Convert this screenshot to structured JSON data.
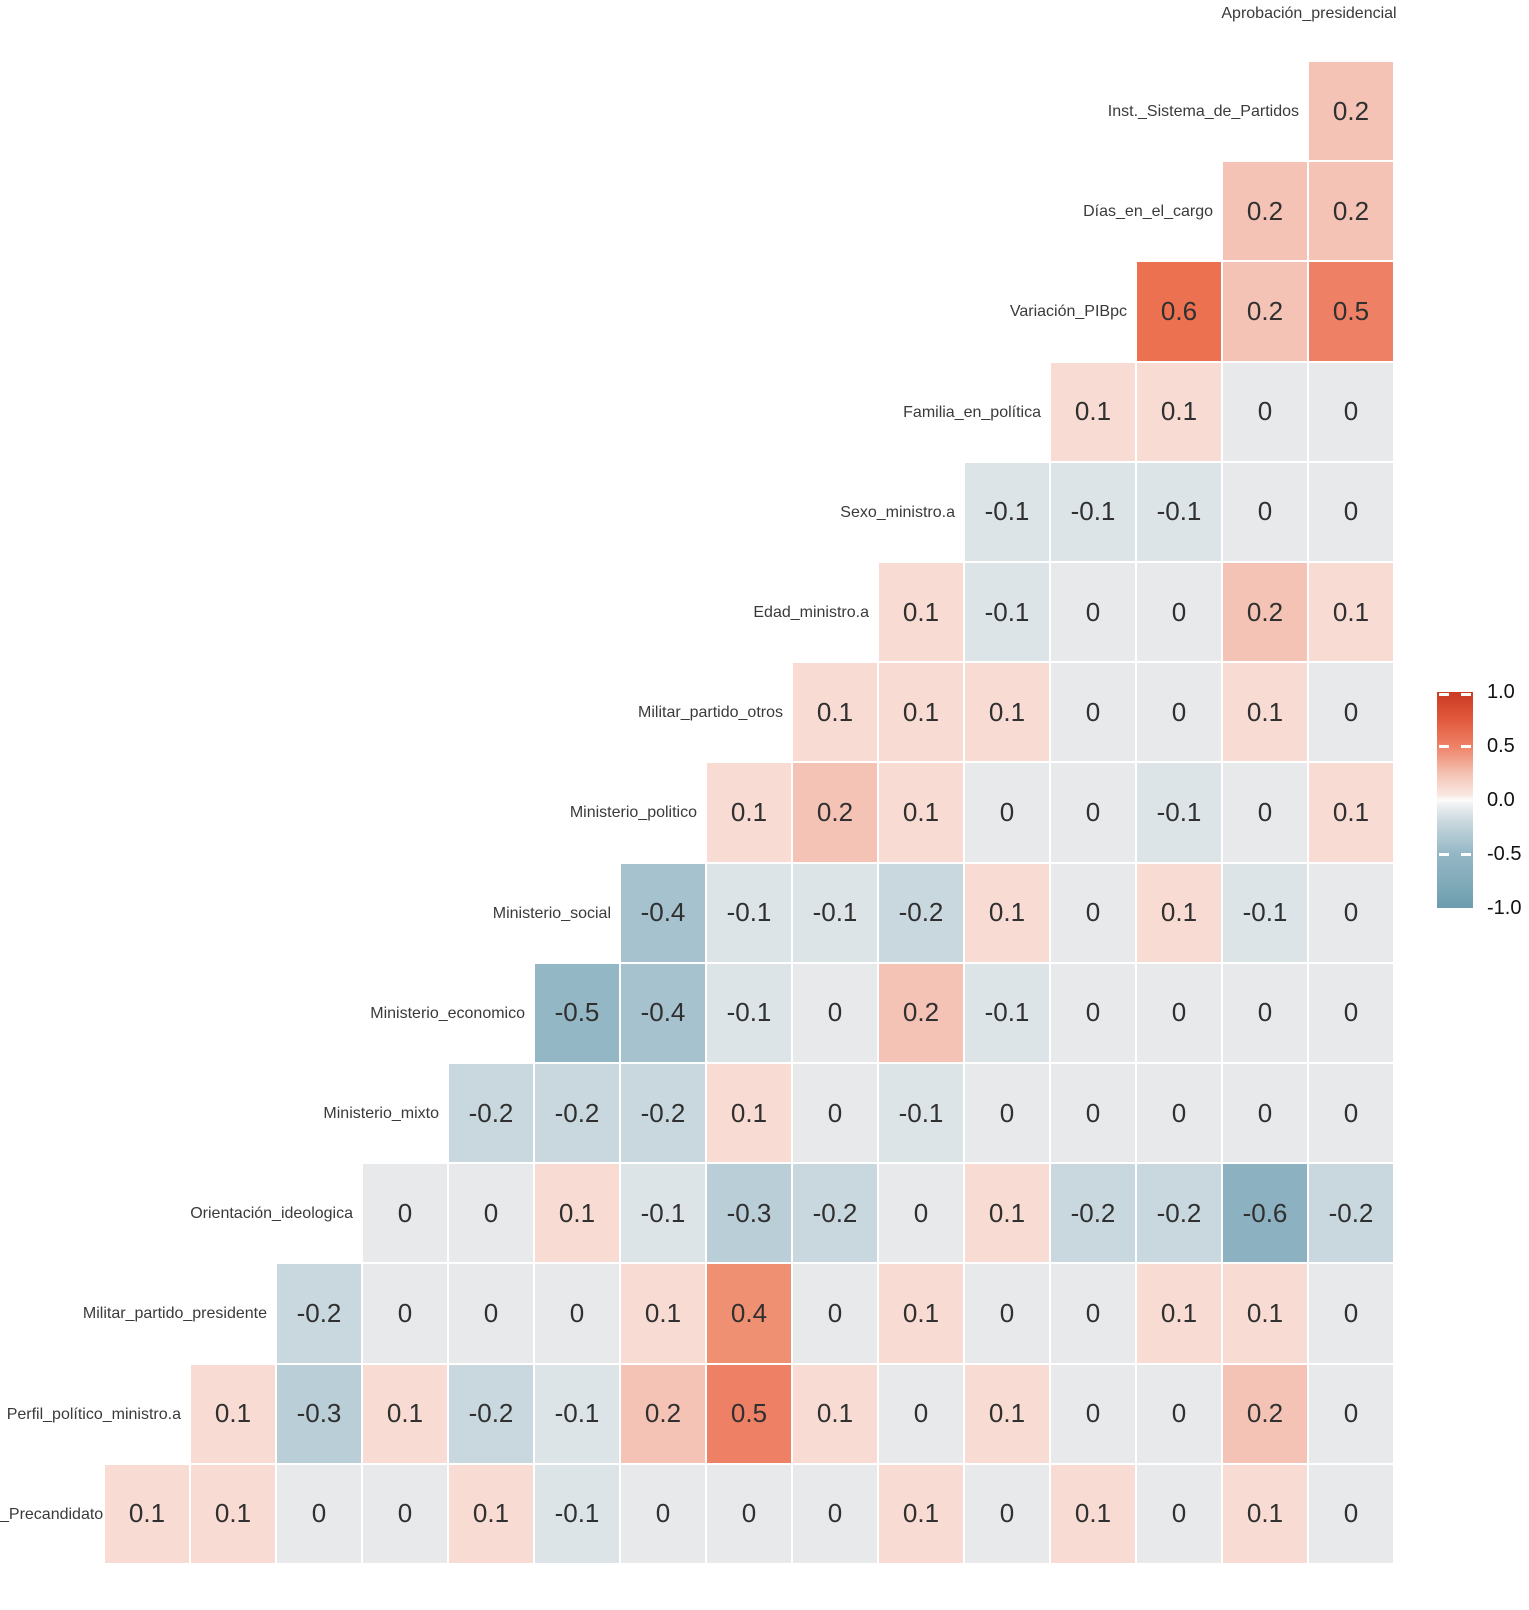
{
  "top_axis_label": "Aprobación_presidencial",
  "chart_data": {
    "type": "heatmap",
    "subtype": "correlation-matrix-lower-triangle",
    "value_range": [
      -1,
      1
    ],
    "grid": "off",
    "top_column_label": "Aprobación_presidencial",
    "columns_left_to_right": [
      "Perfil_político_ministro.a",
      "Militar_partido_presidente",
      "Orientación_ideologica",
      "Ministerio_mixto",
      "Ministerio_economico",
      "Ministerio_social",
      "Ministerio_politico",
      "Militar_partido_otros",
      "Edad_ministro.a",
      "Sexo_ministro.a",
      "Familia_en_política",
      "Variación_PIBpc",
      "Días_en_el_cargo",
      "Inst._Sistema_de_Partidos",
      "Aprobación_presidencial"
    ],
    "rows": [
      {
        "label": "Inst._Sistema_de_Partidos",
        "values": [
          0.2
        ]
      },
      {
        "label": "Días_en_el_cargo",
        "values": [
          0.2,
          0.2
        ]
      },
      {
        "label": "Variación_PIBpc",
        "values": [
          0.6,
          0.2,
          0.5
        ]
      },
      {
        "label": "Familia_en_política",
        "values": [
          0.1,
          0.1,
          0,
          0
        ]
      },
      {
        "label": "Sexo_ministro.a",
        "values": [
          -0.1,
          -0.1,
          -0.1,
          0,
          0
        ]
      },
      {
        "label": "Edad_ministro.a",
        "values": [
          0.1,
          -0.1,
          0,
          0,
          0.2,
          0.1
        ]
      },
      {
        "label": "Militar_partido_otros",
        "values": [
          0.1,
          0.1,
          0.1,
          0,
          0,
          0.1,
          0
        ]
      },
      {
        "label": "Ministerio_politico",
        "values": [
          0.1,
          0.2,
          0.1,
          0,
          0,
          -0.1,
          0,
          0.1
        ]
      },
      {
        "label": "Ministerio_social",
        "values": [
          -0.4,
          -0.1,
          -0.1,
          -0.2,
          0.1,
          0,
          0.1,
          -0.1,
          0
        ]
      },
      {
        "label": "Ministerio_economico",
        "values": [
          -0.5,
          -0.4,
          -0.1,
          0,
          0.2,
          -0.1,
          0,
          0,
          0,
          0
        ]
      },
      {
        "label": "Ministerio_mixto",
        "values": [
          -0.2,
          -0.2,
          -0.2,
          0.1,
          0,
          -0.1,
          0,
          0,
          0,
          0,
          0
        ]
      },
      {
        "label": "Orientación_ideologica",
        "values": [
          0,
          0,
          0.1,
          -0.1,
          -0.3,
          -0.2,
          0,
          0.1,
          -0.2,
          -0.2,
          -0.6,
          -0.2
        ]
      },
      {
        "label": "Militar_partido_presidente",
        "values": [
          -0.2,
          0,
          0,
          0,
          0.1,
          0.4,
          0,
          0.1,
          0,
          0,
          0.1,
          0.1,
          0
        ]
      },
      {
        "label": "Perfil_político_ministro.a",
        "values": [
          0.1,
          -0.3,
          0.1,
          -0.2,
          -0.1,
          0.2,
          0.5,
          0.1,
          0,
          0.1,
          0,
          0,
          0.2,
          0
        ]
      },
      {
        "label": "_Precandidato",
        "values": [
          0.1,
          0.1,
          0,
          0,
          0.1,
          -0.1,
          0,
          0,
          0,
          0.1,
          0,
          0.1,
          0,
          0.1,
          0
        ]
      }
    ],
    "legend": {
      "position": "right",
      "ticks": [
        1.0,
        0.5,
        0.0,
        -0.5,
        -1.0
      ],
      "high_color": "#C93A23",
      "mid_color": "#FCFCFB",
      "low_color": "#6B9DAE"
    }
  },
  "legend_tick_labels": [
    "1.0",
    "0.5",
    "0.0",
    "-0.5",
    "-1.0"
  ],
  "value_colors": {
    "0.6": "#EC7150",
    "0.5": "#EE8165",
    "0.4": "#F09072",
    "0.2": "#F4C3B5",
    "0.1": "#F8DBD2",
    "0": "#E8E9EA",
    "-0.1": "#DDE4E8",
    "-0.2": "#C9D8DF",
    "-0.3": "#B9CED7",
    "-0.4": "#A5C2CE",
    "-0.5": "#94B7C5",
    "-0.6": "#8CB1C1"
  },
  "legend_gradient_stops": [
    {
      "p": 0.0,
      "c": "#6B9DAE"
    },
    {
      "p": 0.1,
      "c": "#7FA9B8"
    },
    {
      "p": 0.25,
      "c": "#94B7C5"
    },
    {
      "p": 0.4,
      "c": "#C9D8DF"
    },
    {
      "p": 0.48,
      "c": "#EFF2F3"
    },
    {
      "p": 0.5,
      "c": "#FCFCFB"
    },
    {
      "p": 0.52,
      "c": "#FAE9E3"
    },
    {
      "p": 0.62,
      "c": "#F4C3B5"
    },
    {
      "p": 0.75,
      "c": "#EE8165"
    },
    {
      "p": 0.88,
      "c": "#E0573B"
    },
    {
      "p": 1.0,
      "c": "#C93A23"
    }
  ]
}
